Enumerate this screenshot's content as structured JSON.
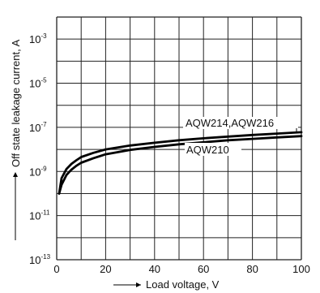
{
  "chart_data": {
    "type": "line",
    "title": "",
    "xlabel": "Load voltage, V",
    "ylabel": "Off state leakage current, A",
    "xlim": [
      0,
      100
    ],
    "ylim_log10": [
      -13,
      -2
    ],
    "y_scale": "log",
    "grid": true,
    "x_ticks": [
      "0",
      "20",
      "40",
      "60",
      "80",
      "100"
    ],
    "y_ticks": [
      {
        "base": "10",
        "exp": "-13"
      },
      {
        "base": "10",
        "exp": "-11"
      },
      {
        "base": "10",
        "exp": "-9"
      },
      {
        "base": "10",
        "exp": "-7"
      },
      {
        "base": "10",
        "exp": "-5"
      },
      {
        "base": "10",
        "exp": "-3"
      }
    ],
    "series": [
      {
        "name": "AQW214,AQW216",
        "x": [
          1,
          2,
          4,
          6,
          8,
          10,
          15,
          20,
          30,
          40,
          50,
          60,
          70,
          80,
          90,
          100
        ],
        "y": [
          1e-10,
          5e-10,
          1.3e-09,
          2.2e-09,
          3.2e-09,
          4.5e-09,
          7e-09,
          1e-08,
          1.5e-08,
          2e-08,
          2.6e-08,
          3.2e-08,
          3.8e-08,
          4.5e-08,
          5.2e-08,
          6e-08
        ]
      },
      {
        "name": "AQW210",
        "x": [
          1,
          2,
          4,
          6,
          8,
          10,
          15,
          20,
          30,
          40,
          50,
          60,
          70,
          80,
          90,
          100
        ],
        "y": [
          1e-10,
          2.5e-10,
          7e-10,
          1.2e-09,
          1.8e-09,
          2.5e-09,
          4e-09,
          6e-09,
          9.5e-09,
          1.3e-08,
          1.7e-08,
          2.1e-08,
          2.6e-08,
          3e-08,
          3.5e-08,
          4e-08
        ]
      }
    ]
  }
}
